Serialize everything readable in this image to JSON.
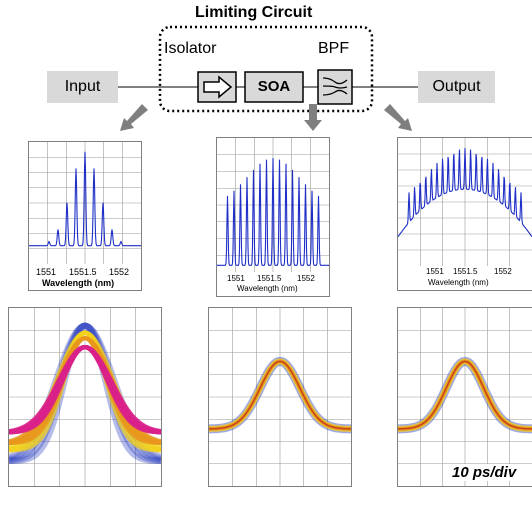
{
  "title": "Limiting Circuit",
  "labels": {
    "input": "Input",
    "output": "Output",
    "isolator": "Isolator",
    "bpf": "BPF",
    "soa": "SOA"
  },
  "spectra": [
    {
      "ticks": [
        "1551",
        "1551.5",
        "1552"
      ],
      "xlabel": "Wavelength (nm)"
    },
    {
      "ticks": [
        "1551",
        "1551.5",
        "1552"
      ],
      "xlabel": "Wavelength (nm)"
    },
    {
      "ticks": [
        "1551",
        "1551.5",
        "1552"
      ],
      "xlabel": "Wavelength (nm)"
    }
  ],
  "timescale": "10 ps/div",
  "colors": {
    "spectrum": "#1f2fc8",
    "grid": "#9a9a9a",
    "box": "#d9d9d9",
    "arrow": "#7f7f7f",
    "eye_outer": "#2a3fbf",
    "eye_mid": "#e8961c",
    "eye_core": "#d9208a"
  }
}
